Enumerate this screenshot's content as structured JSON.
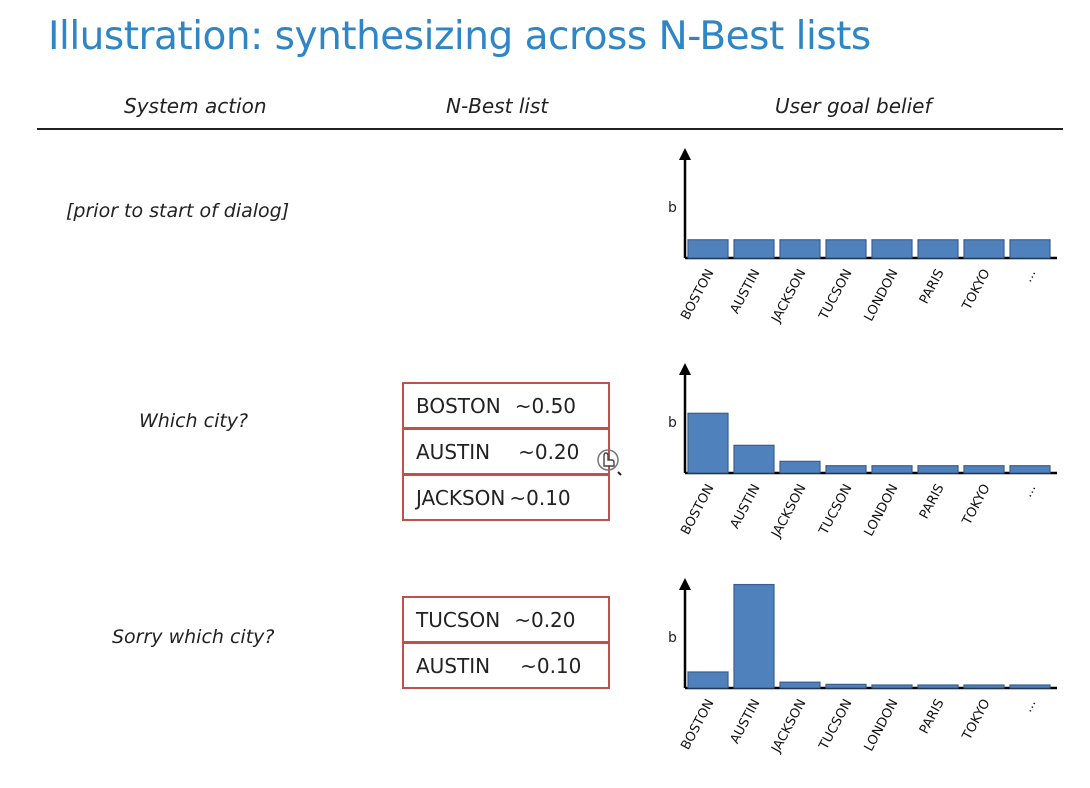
{
  "title": "Illustration: synthesizing across N-Best lists",
  "headers": {
    "system_action": "System action",
    "nbest": "N-Best list",
    "belief": "User goal belief"
  },
  "rows": [
    {
      "action": "[prior to start of dialog]",
      "nbest": []
    },
    {
      "action": "Which city?",
      "nbest": [
        {
          "city": "BOSTON",
          "score": "~0.50"
        },
        {
          "city": "AUSTIN",
          "score": "~0.20"
        },
        {
          "city": "JACKSON",
          "score": "~0.10"
        }
      ]
    },
    {
      "action": "Sorry which city?",
      "nbest": [
        {
          "city": "TUCSON",
          "score": "~0.20"
        },
        {
          "city": "AUSTIN",
          "score": "~0.10"
        }
      ]
    }
  ],
  "chart_data": [
    {
      "type": "bar",
      "ylabel": "b",
      "categories": [
        "BOSTON",
        "AUSTIN",
        "JACKSON",
        "TUCSON",
        "LONDON",
        "PARIS",
        "TOKYO",
        "..."
      ],
      "values": [
        0.125,
        0.125,
        0.125,
        0.125,
        0.125,
        0.125,
        0.125,
        0.125
      ],
      "ylim": [
        0,
        0.7
      ],
      "color": "#4f81bd"
    },
    {
      "type": "bar",
      "ylabel": "b",
      "categories": [
        "BOSTON",
        "AUSTIN",
        "JACKSON",
        "TUCSON",
        "LONDON",
        "PARIS",
        "TOKYO",
        "..."
      ],
      "values": [
        0.41,
        0.19,
        0.08,
        0.05,
        0.05,
        0.05,
        0.05,
        0.05
      ],
      "ylim": [
        0,
        0.7
      ],
      "color": "#4f81bd"
    },
    {
      "type": "bar",
      "ylabel": "b",
      "categories": [
        "BOSTON",
        "AUSTIN",
        "JACKSON",
        "TUCSON",
        "LONDON",
        "PARIS",
        "TOKYO",
        "..."
      ],
      "values": [
        0.11,
        0.71,
        0.04,
        0.025,
        0.018,
        0.018,
        0.018,
        0.018
      ],
      "ylim": [
        0,
        0.7
      ],
      "color": "#4f81bd"
    }
  ]
}
